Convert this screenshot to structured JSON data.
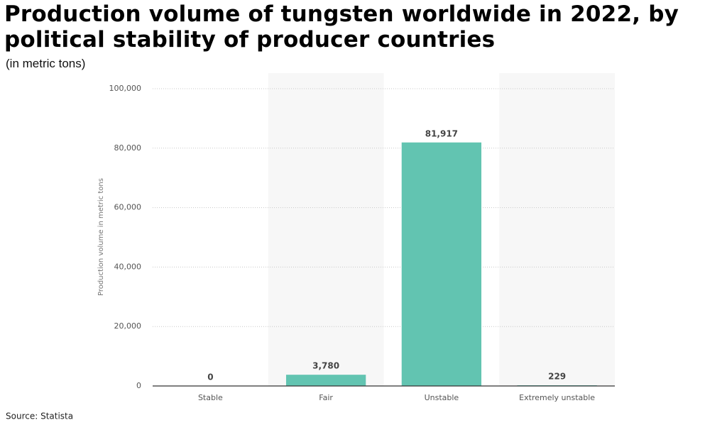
{
  "chart_data": {
    "type": "bar",
    "title": "Production volume of tungsten worldwide in 2022, by political stability of producer countries",
    "subtitle": "(in metric tons)",
    "y_label": "Production volume in metric tons",
    "source": "Source: Statista",
    "categories": [
      "Stable",
      "Fair",
      "Unstable",
      "Extremely unstable"
    ],
    "values": [
      0,
      3780,
      81917,
      229
    ],
    "value_labels": [
      "0",
      "3,780",
      "81,917",
      "229"
    ],
    "color": "#62c4b1",
    "ylim": [
      0,
      100000
    ],
    "yticks": [
      0,
      {
        "value": 20000,
        "label": "20,000"
      },
      {
        "value": 40000,
        "label": "40,000"
      },
      {
        "value": 60000,
        "label": "60,000"
      },
      {
        "value": 80000,
        "label": "80,000"
      },
      {
        "value": 100000,
        "label": "100,000"
      }
    ],
    "grid": true
  }
}
